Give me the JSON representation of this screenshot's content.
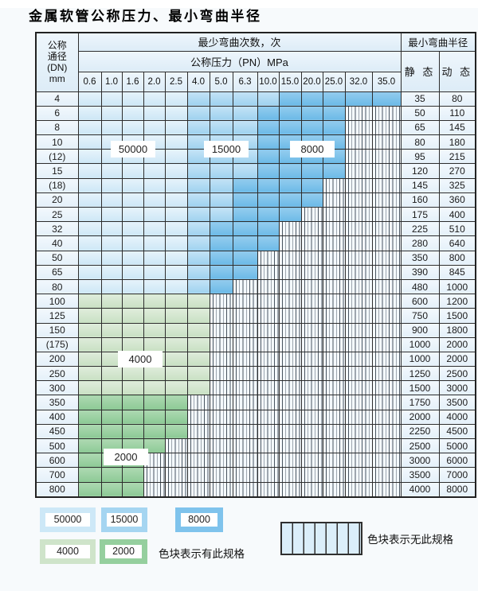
{
  "title": "金属软管公称压力、最小弯曲半径",
  "table": {
    "dn_header_lines": [
      "公称",
      "通径",
      "(DN)",
      "mm"
    ],
    "cycles_header": "最少弯曲次数，次",
    "pressure_header": "公称压力（PN）MPa",
    "radius_header": "最小弯曲半径",
    "static_header": "静 态",
    "dynamic_header": "动 态",
    "pn_columns": [
      "0.6",
      "1.0",
      "1.6",
      "2.0",
      "2.5",
      "4.0",
      "5.0",
      "6.3",
      "10.0",
      "15.0",
      "20.0",
      "25.0",
      "32.0",
      "35.0"
    ],
    "pattern_legend": {
      "A": "50000",
      "B": "15000",
      "C": "8000",
      "D": "4000",
      "E": "2000",
      "X": "无此规格"
    },
    "rows": [
      {
        "dn": "4",
        "pattern": "AAAAABBBBCCCCC",
        "static": "35",
        "dynamic": "80"
      },
      {
        "dn": "6",
        "pattern": "AAAAABBBCCCCXX",
        "static": "50",
        "dynamic": "110"
      },
      {
        "dn": "8",
        "pattern": "AAAAABBBCCCCXX",
        "static": "65",
        "dynamic": "145"
      },
      {
        "dn": "10",
        "pattern": "AAAAABBBCCCCXX",
        "static": "80",
        "dynamic": "180"
      },
      {
        "dn": "(12)",
        "pattern": "AAAAABBBCCCCXX",
        "static": "95",
        "dynamic": "215"
      },
      {
        "dn": "15",
        "pattern": "AAAAABBBCCCCXX",
        "static": "120",
        "dynamic": "270"
      },
      {
        "dn": "(18)",
        "pattern": "AAAAABBCCCCXXX",
        "static": "145",
        "dynamic": "325"
      },
      {
        "dn": "20",
        "pattern": "AAAAABBCCCCXXX",
        "static": "160",
        "dynamic": "360"
      },
      {
        "dn": "25",
        "pattern": "AAAAABBCCCXXXX",
        "static": "175",
        "dynamic": "400"
      },
      {
        "dn": "32",
        "pattern": "AAAAABCCCXXXXX",
        "static": "225",
        "dynamic": "510"
      },
      {
        "dn": "40",
        "pattern": "AAAAABCCCXXXXX",
        "static": "280",
        "dynamic": "640"
      },
      {
        "dn": "50",
        "pattern": "AAAAABCCXXXXXX",
        "static": "350",
        "dynamic": "800"
      },
      {
        "dn": "65",
        "pattern": "AAAAABCCXXXXXX",
        "static": "390",
        "dynamic": "845"
      },
      {
        "dn": "80",
        "pattern": "AAAAABCXXXXXXX",
        "static": "480",
        "dynamic": "1000"
      },
      {
        "dn": "100",
        "pattern": "DDDDDDXXXXXXXX",
        "static": "600",
        "dynamic": "1200"
      },
      {
        "dn": "125",
        "pattern": "DDDDDDXXXXXXXX",
        "static": "750",
        "dynamic": "1500"
      },
      {
        "dn": "150",
        "pattern": "DDDDDDXXXXXXXX",
        "static": "900",
        "dynamic": "1800"
      },
      {
        "dn": "(175)",
        "pattern": "DDDDDDXXXXXXXX",
        "static": "1000",
        "dynamic": "2000"
      },
      {
        "dn": "200",
        "pattern": "DDDDDDXXXXXXXX",
        "static": "1000",
        "dynamic": "2000"
      },
      {
        "dn": "250",
        "pattern": "DDDDDDXXXXXXXX",
        "static": "1250",
        "dynamic": "2500"
      },
      {
        "dn": "300",
        "pattern": "DDDDDDXXXXXXXX",
        "static": "1500",
        "dynamic": "3000"
      },
      {
        "dn": "350",
        "pattern": "EEEEEXXXXXXXXX",
        "static": "1750",
        "dynamic": "3500"
      },
      {
        "dn": "400",
        "pattern": "EEEEEXXXXXXXXX",
        "static": "2000",
        "dynamic": "4000"
      },
      {
        "dn": "450",
        "pattern": "EEEEEXXXXXXXXX",
        "static": "2250",
        "dynamic": "4500"
      },
      {
        "dn": "500",
        "pattern": "EEEEXXXXXXXXXX",
        "static": "2500",
        "dynamic": "5000"
      },
      {
        "dn": "600",
        "pattern": "EEEXXXXXXXXXXX",
        "static": "3000",
        "dynamic": "6000"
      },
      {
        "dn": "700",
        "pattern": "EEEXXXXXXXXXXX",
        "static": "3500",
        "dynamic": "7000"
      },
      {
        "dn": "800",
        "pattern": "EEEXXXXXXXXXXX",
        "static": "4000",
        "dynamic": "8000"
      }
    ]
  },
  "overlay_labels": [
    "50000",
    "15000",
    "8000",
    "4000",
    "2000"
  ],
  "legend": {
    "items": [
      {
        "value": "50000",
        "color": "#cde8f7"
      },
      {
        "value": "15000",
        "color": "#a5d5f1"
      },
      {
        "value": "8000",
        "color": "#7fc3ec"
      },
      {
        "value": "4000",
        "color": "#cfe4ca"
      },
      {
        "value": "2000",
        "color": "#95cf9e"
      }
    ],
    "has_spec_text": "色块表示有此规格",
    "no_spec_text": "色块表示无此规格"
  }
}
